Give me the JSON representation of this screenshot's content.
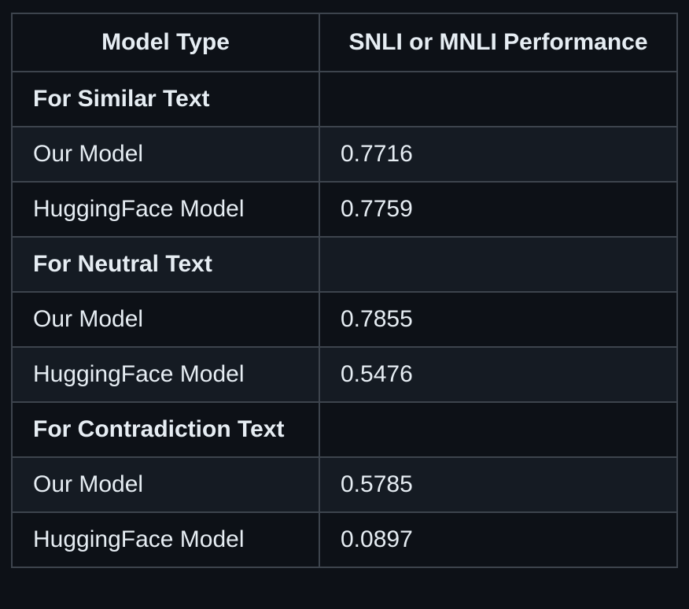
{
  "table": {
    "headers": [
      "Model Type",
      "SNLI or MNLI Performance"
    ],
    "rows": [
      {
        "model": "For Similar Text",
        "score": "",
        "section": true
      },
      {
        "model": "Our Model",
        "score": "0.7716",
        "section": false
      },
      {
        "model": "HuggingFace Model",
        "score": "0.7759",
        "section": false
      },
      {
        "model": "For Neutral Text",
        "score": "",
        "section": true
      },
      {
        "model": "Our Model",
        "score": "0.7855",
        "section": false
      },
      {
        "model": "HuggingFace Model",
        "score": "0.5476",
        "section": false
      },
      {
        "model": "For Contradiction Text",
        "score": "",
        "section": true
      },
      {
        "model": "Our Model",
        "score": "0.5785",
        "section": false
      },
      {
        "model": "HuggingFace Model",
        "score": "0.0897",
        "section": false
      }
    ]
  },
  "colors": {
    "background": "#0d1117",
    "row_alt": "#151b23",
    "border": "#3d444d",
    "text": "#e6edf3"
  }
}
